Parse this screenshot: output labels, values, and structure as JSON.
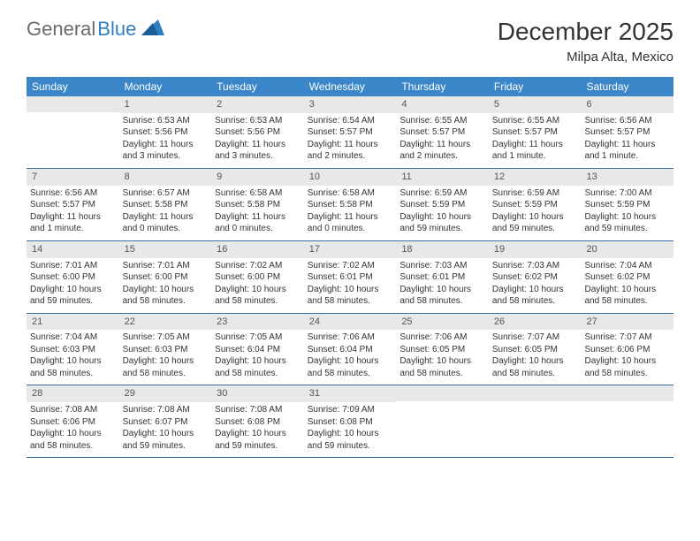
{
  "logo": {
    "text1": "General",
    "text2": "Blue"
  },
  "title": "December 2025",
  "location": "Milpa Alta, Mexico",
  "day_headers": [
    "Sunday",
    "Monday",
    "Tuesday",
    "Wednesday",
    "Thursday",
    "Friday",
    "Saturday"
  ],
  "colors": {
    "header_bg": "#3a86c8",
    "header_text": "#ffffff",
    "daynum_bg": "#e8e8e8",
    "daynum_text": "#555555",
    "row_border": "#3a6ea5",
    "body_text": "#333333",
    "logo_gray": "#6b6b6b",
    "logo_blue": "#2f7ec2"
  },
  "weeks": [
    [
      {
        "n": "",
        "sunrise": "",
        "sunset": "",
        "daylight": ""
      },
      {
        "n": "1",
        "sunrise": "Sunrise: 6:53 AM",
        "sunset": "Sunset: 5:56 PM",
        "daylight": "Daylight: 11 hours and 3 minutes."
      },
      {
        "n": "2",
        "sunrise": "Sunrise: 6:53 AM",
        "sunset": "Sunset: 5:56 PM",
        "daylight": "Daylight: 11 hours and 3 minutes."
      },
      {
        "n": "3",
        "sunrise": "Sunrise: 6:54 AM",
        "sunset": "Sunset: 5:57 PM",
        "daylight": "Daylight: 11 hours and 2 minutes."
      },
      {
        "n": "4",
        "sunrise": "Sunrise: 6:55 AM",
        "sunset": "Sunset: 5:57 PM",
        "daylight": "Daylight: 11 hours and 2 minutes."
      },
      {
        "n": "5",
        "sunrise": "Sunrise: 6:55 AM",
        "sunset": "Sunset: 5:57 PM",
        "daylight": "Daylight: 11 hours and 1 minute."
      },
      {
        "n": "6",
        "sunrise": "Sunrise: 6:56 AM",
        "sunset": "Sunset: 5:57 PM",
        "daylight": "Daylight: 11 hours and 1 minute."
      }
    ],
    [
      {
        "n": "7",
        "sunrise": "Sunrise: 6:56 AM",
        "sunset": "Sunset: 5:57 PM",
        "daylight": "Daylight: 11 hours and 1 minute."
      },
      {
        "n": "8",
        "sunrise": "Sunrise: 6:57 AM",
        "sunset": "Sunset: 5:58 PM",
        "daylight": "Daylight: 11 hours and 0 minutes."
      },
      {
        "n": "9",
        "sunrise": "Sunrise: 6:58 AM",
        "sunset": "Sunset: 5:58 PM",
        "daylight": "Daylight: 11 hours and 0 minutes."
      },
      {
        "n": "10",
        "sunrise": "Sunrise: 6:58 AM",
        "sunset": "Sunset: 5:58 PM",
        "daylight": "Daylight: 11 hours and 0 minutes."
      },
      {
        "n": "11",
        "sunrise": "Sunrise: 6:59 AM",
        "sunset": "Sunset: 5:59 PM",
        "daylight": "Daylight: 10 hours and 59 minutes."
      },
      {
        "n": "12",
        "sunrise": "Sunrise: 6:59 AM",
        "sunset": "Sunset: 5:59 PM",
        "daylight": "Daylight: 10 hours and 59 minutes."
      },
      {
        "n": "13",
        "sunrise": "Sunrise: 7:00 AM",
        "sunset": "Sunset: 5:59 PM",
        "daylight": "Daylight: 10 hours and 59 minutes."
      }
    ],
    [
      {
        "n": "14",
        "sunrise": "Sunrise: 7:01 AM",
        "sunset": "Sunset: 6:00 PM",
        "daylight": "Daylight: 10 hours and 59 minutes."
      },
      {
        "n": "15",
        "sunrise": "Sunrise: 7:01 AM",
        "sunset": "Sunset: 6:00 PM",
        "daylight": "Daylight: 10 hours and 58 minutes."
      },
      {
        "n": "16",
        "sunrise": "Sunrise: 7:02 AM",
        "sunset": "Sunset: 6:00 PM",
        "daylight": "Daylight: 10 hours and 58 minutes."
      },
      {
        "n": "17",
        "sunrise": "Sunrise: 7:02 AM",
        "sunset": "Sunset: 6:01 PM",
        "daylight": "Daylight: 10 hours and 58 minutes."
      },
      {
        "n": "18",
        "sunrise": "Sunrise: 7:03 AM",
        "sunset": "Sunset: 6:01 PM",
        "daylight": "Daylight: 10 hours and 58 minutes."
      },
      {
        "n": "19",
        "sunrise": "Sunrise: 7:03 AM",
        "sunset": "Sunset: 6:02 PM",
        "daylight": "Daylight: 10 hours and 58 minutes."
      },
      {
        "n": "20",
        "sunrise": "Sunrise: 7:04 AM",
        "sunset": "Sunset: 6:02 PM",
        "daylight": "Daylight: 10 hours and 58 minutes."
      }
    ],
    [
      {
        "n": "21",
        "sunrise": "Sunrise: 7:04 AM",
        "sunset": "Sunset: 6:03 PM",
        "daylight": "Daylight: 10 hours and 58 minutes."
      },
      {
        "n": "22",
        "sunrise": "Sunrise: 7:05 AM",
        "sunset": "Sunset: 6:03 PM",
        "daylight": "Daylight: 10 hours and 58 minutes."
      },
      {
        "n": "23",
        "sunrise": "Sunrise: 7:05 AM",
        "sunset": "Sunset: 6:04 PM",
        "daylight": "Daylight: 10 hours and 58 minutes."
      },
      {
        "n": "24",
        "sunrise": "Sunrise: 7:06 AM",
        "sunset": "Sunset: 6:04 PM",
        "daylight": "Daylight: 10 hours and 58 minutes."
      },
      {
        "n": "25",
        "sunrise": "Sunrise: 7:06 AM",
        "sunset": "Sunset: 6:05 PM",
        "daylight": "Daylight: 10 hours and 58 minutes."
      },
      {
        "n": "26",
        "sunrise": "Sunrise: 7:07 AM",
        "sunset": "Sunset: 6:05 PM",
        "daylight": "Daylight: 10 hours and 58 minutes."
      },
      {
        "n": "27",
        "sunrise": "Sunrise: 7:07 AM",
        "sunset": "Sunset: 6:06 PM",
        "daylight": "Daylight: 10 hours and 58 minutes."
      }
    ],
    [
      {
        "n": "28",
        "sunrise": "Sunrise: 7:08 AM",
        "sunset": "Sunset: 6:06 PM",
        "daylight": "Daylight: 10 hours and 58 minutes."
      },
      {
        "n": "29",
        "sunrise": "Sunrise: 7:08 AM",
        "sunset": "Sunset: 6:07 PM",
        "daylight": "Daylight: 10 hours and 59 minutes."
      },
      {
        "n": "30",
        "sunrise": "Sunrise: 7:08 AM",
        "sunset": "Sunset: 6:08 PM",
        "daylight": "Daylight: 10 hours and 59 minutes."
      },
      {
        "n": "31",
        "sunrise": "Sunrise: 7:09 AM",
        "sunset": "Sunset: 6:08 PM",
        "daylight": "Daylight: 10 hours and 59 minutes."
      },
      {
        "n": "",
        "sunrise": "",
        "sunset": "",
        "daylight": ""
      },
      {
        "n": "",
        "sunrise": "",
        "sunset": "",
        "daylight": ""
      },
      {
        "n": "",
        "sunrise": "",
        "sunset": "",
        "daylight": ""
      }
    ]
  ]
}
